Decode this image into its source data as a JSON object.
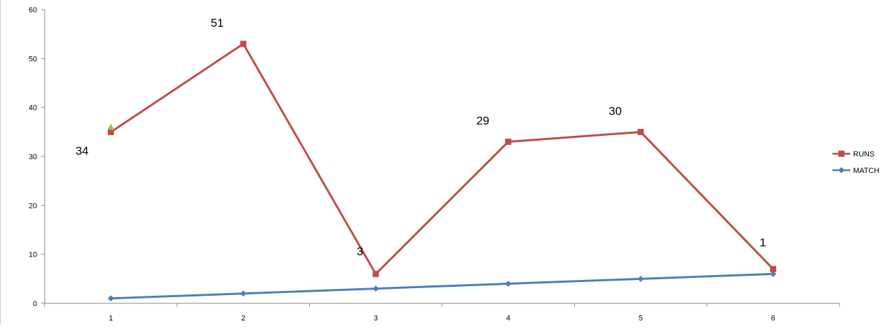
{
  "chart_data": {
    "type": "line",
    "categories": [
      "1",
      "2",
      "3",
      "4",
      "5",
      "6"
    ],
    "ylim": [
      0,
      60
    ],
    "y_ticks": [
      "0",
      "10",
      "20",
      "30",
      "40",
      "50",
      "60"
    ],
    "grid": false,
    "legend_position": "right",
    "series": [
      {
        "name": "RUNS",
        "color": "#BE4B48",
        "marker": "square",
        "values": [
          35,
          53,
          6,
          33,
          35,
          7
        ],
        "data_labels": [
          "34",
          "51",
          "3",
          "29",
          "30",
          "1"
        ]
      },
      {
        "name": "MATCH",
        "color": "#4A7EBB",
        "marker": "diamond",
        "values": [
          1,
          2,
          3,
          4,
          5,
          6
        ]
      }
    ],
    "extra_points": [
      {
        "category": "1",
        "value": 36,
        "color": "#9BBB59",
        "marker": "triangle"
      }
    ]
  }
}
